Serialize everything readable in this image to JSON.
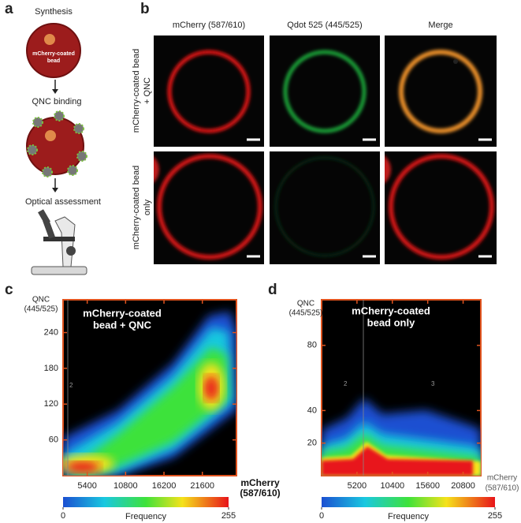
{
  "panel_a": {
    "label": "a",
    "steps": [
      "Synthesis",
      "QNC binding",
      "Optical assessment"
    ],
    "bead_label": [
      "mCherry-coated",
      "bead"
    ]
  },
  "panel_b": {
    "label": "b",
    "columns": [
      "mCherry (587/610)",
      "Qdot 525 (445/525)",
      "Merge"
    ],
    "rows": [
      [
        "mCherry-coated bead",
        "+ QNC"
      ],
      [
        "mCherry-coated bead",
        "only"
      ]
    ]
  },
  "panel_c": {
    "label": "c",
    "title": [
      "mCherry-coated",
      "bead + QNC"
    ],
    "y_label": [
      "QNC",
      "(445/525)"
    ],
    "x_label": [
      "mCherry",
      "(587/610)"
    ],
    "xlim": [
      2000,
      26400
    ],
    "xticks": [
      5400,
      10800,
      16200,
      21600
    ],
    "ylim": [
      0,
      295
    ],
    "yticks": [
      60,
      120,
      180,
      240
    ],
    "gate_labels": [
      "2"
    ],
    "colorbar": {
      "label": "Frequency",
      "lim": [
        0,
        255
      ],
      "ticks": [
        0,
        255
      ]
    }
  },
  "panel_d": {
    "label": "d",
    "title": [
      "mCherry-coated",
      "bead only"
    ],
    "y_label": [
      "QNC",
      "(445/525)"
    ],
    "x_label": [
      "mCherry",
      "(587/610)"
    ],
    "xlim": [
      0,
      23400
    ],
    "xticks": [
      5200,
      10400,
      15600,
      20800
    ],
    "ylim": [
      0,
      108
    ],
    "yticks": [
      20,
      40,
      80
    ],
    "gate_labels": [
      "2",
      "3"
    ],
    "colorbar": {
      "label": "Frequency",
      "lim": [
        0,
        255
      ],
      "ticks": [
        0,
        255
      ]
    }
  }
}
